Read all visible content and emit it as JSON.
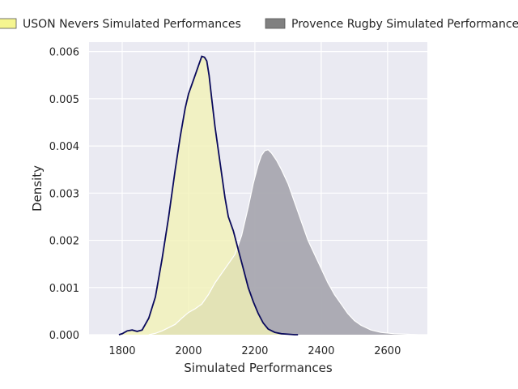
{
  "chart_data": {
    "type": "area",
    "xlabel": "Simulated Performances",
    "ylabel": "Density",
    "xlim": [
      1700,
      2720
    ],
    "ylim": [
      0,
      0.0062
    ],
    "xticks": [
      1800,
      2000,
      2200,
      2400,
      2600
    ],
    "yticks": [
      0.0,
      0.001,
      0.002,
      0.003,
      0.004,
      0.005,
      0.006
    ],
    "ytick_labels": [
      "0.000",
      "0.001",
      "0.002",
      "0.003",
      "0.004",
      "0.005",
      "0.006"
    ],
    "grid": true,
    "legend_position": "top",
    "series": [
      {
        "name": "USON Nevers Simulated Performances",
        "fill_color": "#f2f2b6",
        "line_color": "#0a0a5c",
        "legend_color": "#f5f590",
        "x": [
          1790,
          1800,
          1815,
          1830,
          1845,
          1860,
          1880,
          1900,
          1920,
          1940,
          1960,
          1975,
          1990,
          2000,
          2010,
          2020,
          2030,
          2040,
          2048,
          2055,
          2062,
          2070,
          2080,
          2090,
          2100,
          2110,
          2120,
          2135,
          2150,
          2165,
          2180,
          2195,
          2210,
          2225,
          2240,
          2260,
          2280,
          2300,
          2320,
          2330
        ],
        "y": [
          0.0,
          2e-05,
          8e-05,
          0.0001,
          7e-05,
          0.0001,
          0.00035,
          0.0008,
          0.0016,
          0.0025,
          0.0035,
          0.0042,
          0.0048,
          0.0051,
          0.0053,
          0.0055,
          0.0057,
          0.0059,
          0.00588,
          0.0058,
          0.0055,
          0.005,
          0.0044,
          0.0039,
          0.0034,
          0.0029,
          0.0025,
          0.0022,
          0.0018,
          0.0014,
          0.001,
          0.0007,
          0.00045,
          0.00025,
          0.00012,
          5e-05,
          2e-05,
          1e-05,
          0.0,
          0.0
        ]
      },
      {
        "name": "Provence Rugby Simulated Performances",
        "fill_color": "#a9a8b0",
        "line_color": "#ffffff",
        "legend_color": "#808080",
        "x": [
          1880,
          1900,
          1920,
          1940,
          1960,
          1980,
          2000,
          2020,
          2040,
          2060,
          2080,
          2100,
          2120,
          2140,
          2160,
          2180,
          2195,
          2210,
          2220,
          2230,
          2240,
          2250,
          2265,
          2280,
          2300,
          2320,
          2340,
          2360,
          2380,
          2400,
          2420,
          2440,
          2460,
          2480,
          2500,
          2520,
          2550,
          2580,
          2620,
          2660,
          2690
        ],
        "y": [
          0.0,
          3e-05,
          8e-05,
          0.00015,
          0.00022,
          0.00035,
          0.00047,
          0.00055,
          0.00065,
          0.00085,
          0.0011,
          0.0013,
          0.0015,
          0.0017,
          0.0021,
          0.0027,
          0.0032,
          0.0036,
          0.0038,
          0.0039,
          0.00392,
          0.00385,
          0.0037,
          0.0035,
          0.0032,
          0.0028,
          0.0024,
          0.002,
          0.0017,
          0.0014,
          0.0011,
          0.00085,
          0.00065,
          0.00045,
          0.0003,
          0.0002,
          0.0001,
          5e-05,
          2e-05,
          1e-05,
          0.0
        ]
      }
    ]
  }
}
